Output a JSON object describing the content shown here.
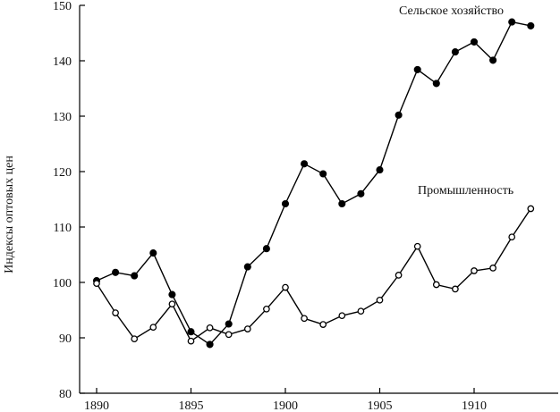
{
  "chart_data": {
    "type": "line",
    "title": "",
    "xlabel": "",
    "ylabel": "Индексы оптовых цен",
    "xlim": [
      1889.7,
      1915
    ],
    "ylim": [
      80,
      150
    ],
    "x_ticks": [
      1890,
      1895,
      1900,
      1905,
      1910
    ],
    "y_ticks": [
      80,
      90,
      100,
      110,
      120,
      130,
      140,
      150
    ],
    "grid": false,
    "x": [
      1890,
      1891,
      1892,
      1893,
      1894,
      1895,
      1896,
      1897,
      1898,
      1899,
      1900,
      1901,
      1902,
      1903,
      1904,
      1905,
      1906,
      1907,
      1908,
      1909,
      1910,
      1911,
      1912,
      1913
    ],
    "series": [
      {
        "name": "Сельское хозяйство",
        "marker": "filled-circle",
        "values": [
          100.3,
          101.8,
          101.2,
          105.3,
          97.8,
          91.1,
          88.8,
          92.5,
          102.8,
          106.1,
          114.2,
          121.4,
          119.6,
          114.2,
          116.0,
          120.3,
          130.2,
          138.4,
          135.9,
          141.6,
          143.4,
          140.1,
          147.0,
          146.3
        ]
      },
      {
        "name": "Промышленность",
        "marker": "open-circle",
        "values": [
          99.8,
          94.5,
          89.8,
          91.9,
          96.1,
          89.4,
          91.8,
          90.6,
          91.6,
          95.2,
          99.1,
          93.5,
          92.4,
          94.0,
          94.8,
          96.8,
          101.3,
          106.5,
          99.6,
          98.8,
          102.1,
          102.6,
          108.2,
          113.3
        ]
      }
    ]
  }
}
